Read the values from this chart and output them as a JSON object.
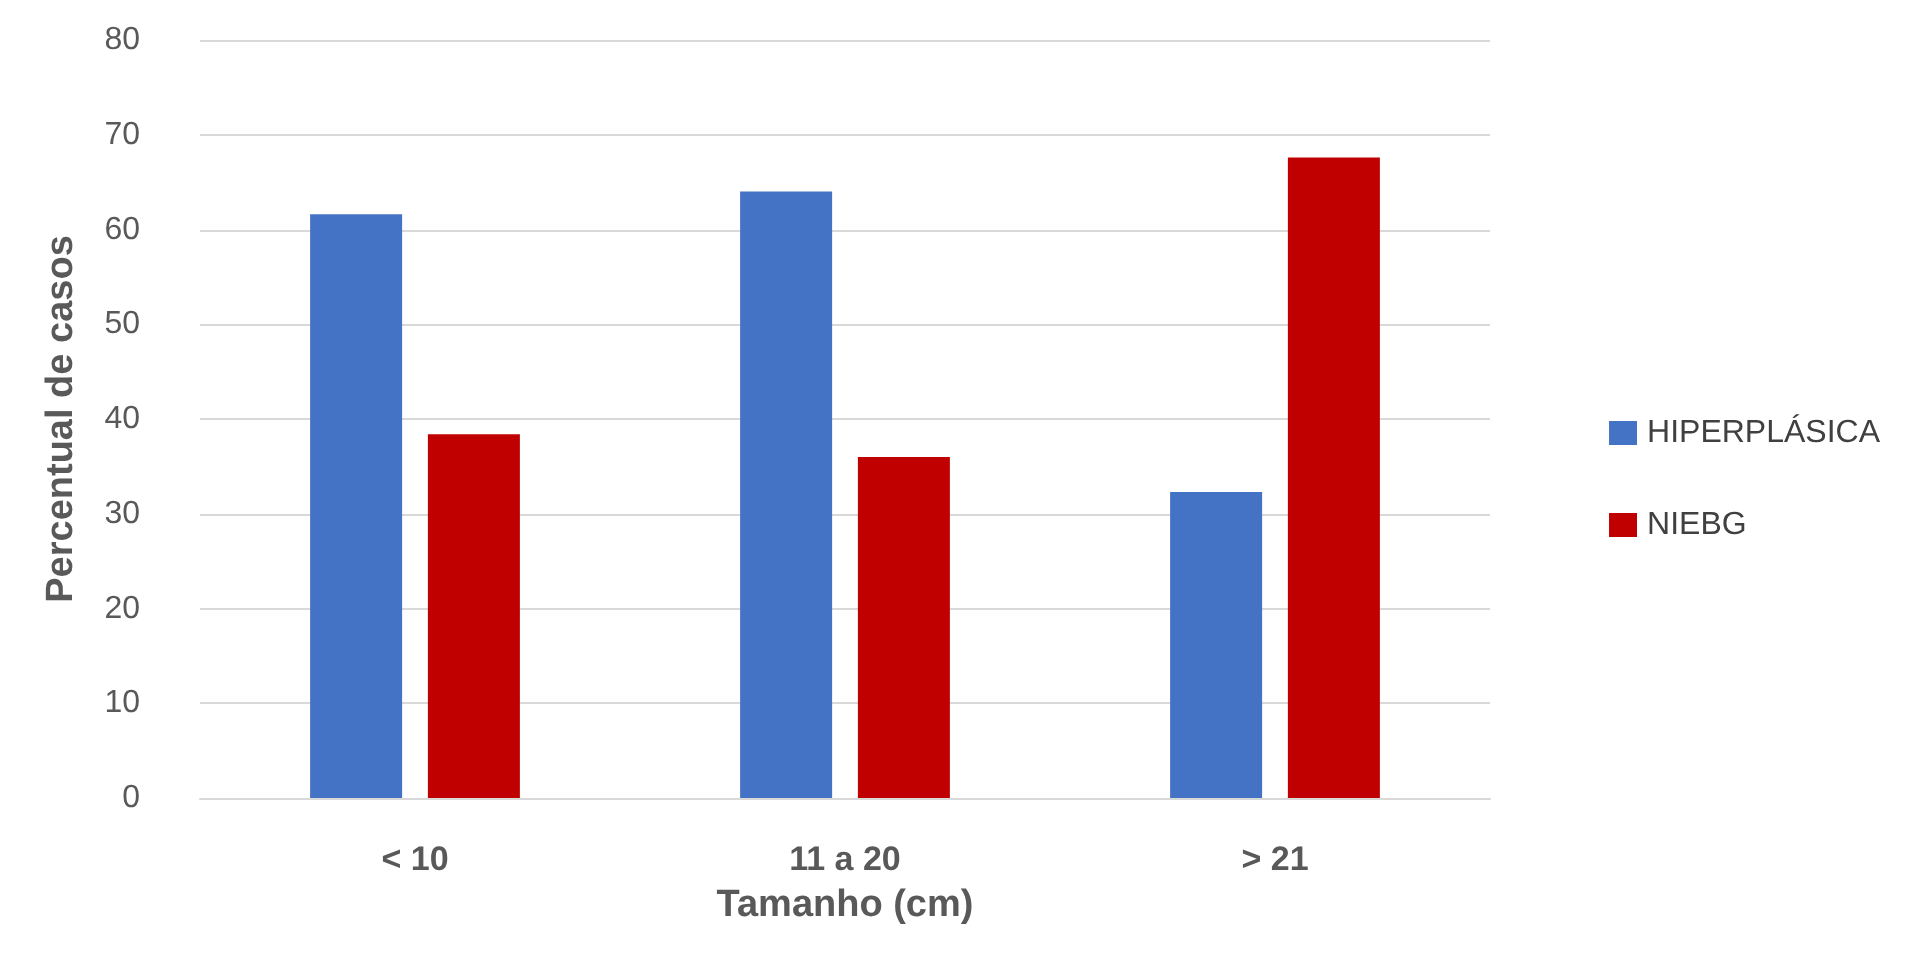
{
  "chart_data": {
    "type": "bar",
    "xlabel": "Tamanho (cm)",
    "ylabel": "Percentual de casos",
    "categories": [
      "< 10",
      "11 a 20",
      "> 21"
    ],
    "series": [
      {
        "name": "HIPERPLÁSICA",
        "color": "#4472c4",
        "values": [
          61.6,
          64,
          32.3
        ]
      },
      {
        "name": "NIEBG",
        "color": "#c00000",
        "values": [
          38.4,
          36,
          67.6
        ]
      }
    ],
    "ylim": [
      0,
      80
    ],
    "yticks": [
      0,
      10,
      20,
      30,
      40,
      50,
      60,
      70,
      80
    ],
    "grid": "y",
    "legend": "right"
  }
}
